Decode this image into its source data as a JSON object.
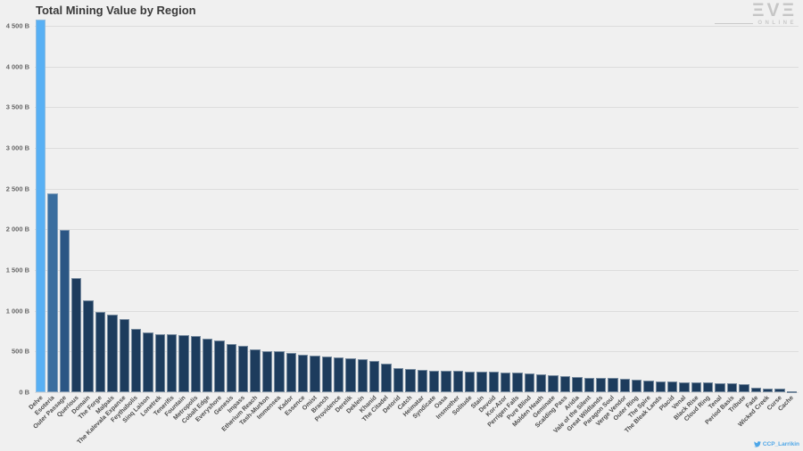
{
  "header": {
    "title": "Total Mining Value by Region"
  },
  "branding": {
    "logo_text": "ΞVΞ",
    "logo_subtext": "ONLINE",
    "logo_color": "#c6c6c6"
  },
  "watermark": {
    "icon": "twitter-bird-icon",
    "handle": "CCP_Larrikin",
    "color": "#4da6e8"
  },
  "chart_data": {
    "type": "bar",
    "title": "Total Mining Value by Region",
    "xlabel": "",
    "ylabel": "",
    "unit": "B",
    "grid": true,
    "legend": false,
    "ylim": [
      0,
      4500
    ],
    "plot_max": 4588,
    "y_tick_step": 500,
    "y_ticks": [
      "0 B",
      "500 B",
      "1 000 B",
      "1 500 B",
      "2 000 B",
      "2 500 B",
      "3 000 B",
      "3 500 B",
      "4 000 B",
      "4 500 B"
    ],
    "y_tick_values": [
      0,
      500,
      1000,
      1500,
      2000,
      2500,
      3000,
      3500,
      4000,
      4500
    ],
    "categories": [
      "Delve",
      "Esoteria",
      "Outer Passage",
      "Querious",
      "Domain",
      "The Forge",
      "Malpais",
      "The Kalevala Expanse",
      "Feythabolis",
      "Sinq Laison",
      "Lonetrek",
      "Tenerifis",
      "Fountain",
      "Metropolis",
      "Cobalt Edge",
      "Everyshore",
      "Genesis",
      "Impass",
      "Etherium Reach",
      "Tash-Murkon",
      "Immensea",
      "Kador",
      "Essence",
      "Omist",
      "Branch",
      "Providence",
      "Derelik",
      "Deklein",
      "Khanid",
      "The Citadel",
      "Detorid",
      "Catch",
      "Heimatar",
      "Syndicate",
      "Oasa",
      "Insmother",
      "Solitude",
      "Stain",
      "Devoid",
      "Kor-Azor",
      "Perrigen Falls",
      "Pure Blind",
      "Molden Heath",
      "Geminate",
      "Scalding Pass",
      "Aridia",
      "Vale of the Silent",
      "Great Wildlands",
      "Paragon Soul",
      "Verge Vendor",
      "Outer Ring",
      "The Spire",
      "The Bleak Lands",
      "Placid",
      "Venal",
      "Black Rise",
      "Cloud Ring",
      "Tenal",
      "Period Basis",
      "Tribute",
      "Fade",
      "Wicked Creek",
      "Curse",
      "Cache"
    ],
    "values": [
      4580,
      2440,
      1990,
      1400,
      1130,
      990,
      955,
      900,
      780,
      730,
      715,
      710,
      705,
      685,
      660,
      630,
      595,
      570,
      530,
      508,
      500,
      478,
      458,
      445,
      437,
      430,
      420,
      405,
      385,
      345,
      300,
      285,
      272,
      266,
      262,
      259,
      256,
      252,
      248,
      244,
      240,
      226,
      218,
      205,
      196,
      190,
      177,
      173,
      170,
      167,
      155,
      142,
      132,
      128,
      125,
      122,
      119,
      112,
      106,
      100,
      60,
      46,
      40,
      14
    ],
    "colors": {
      "bar_first": "#58b0f4",
      "bar_second": "#3a6e9f",
      "bar_third": "#2b5684",
      "bar_rest": "#1d3c5d",
      "gridline": "#dddddd",
      "background": "#f0f0f0",
      "title_text": "#3a3a3a",
      "tick_text": "#666666"
    }
  }
}
